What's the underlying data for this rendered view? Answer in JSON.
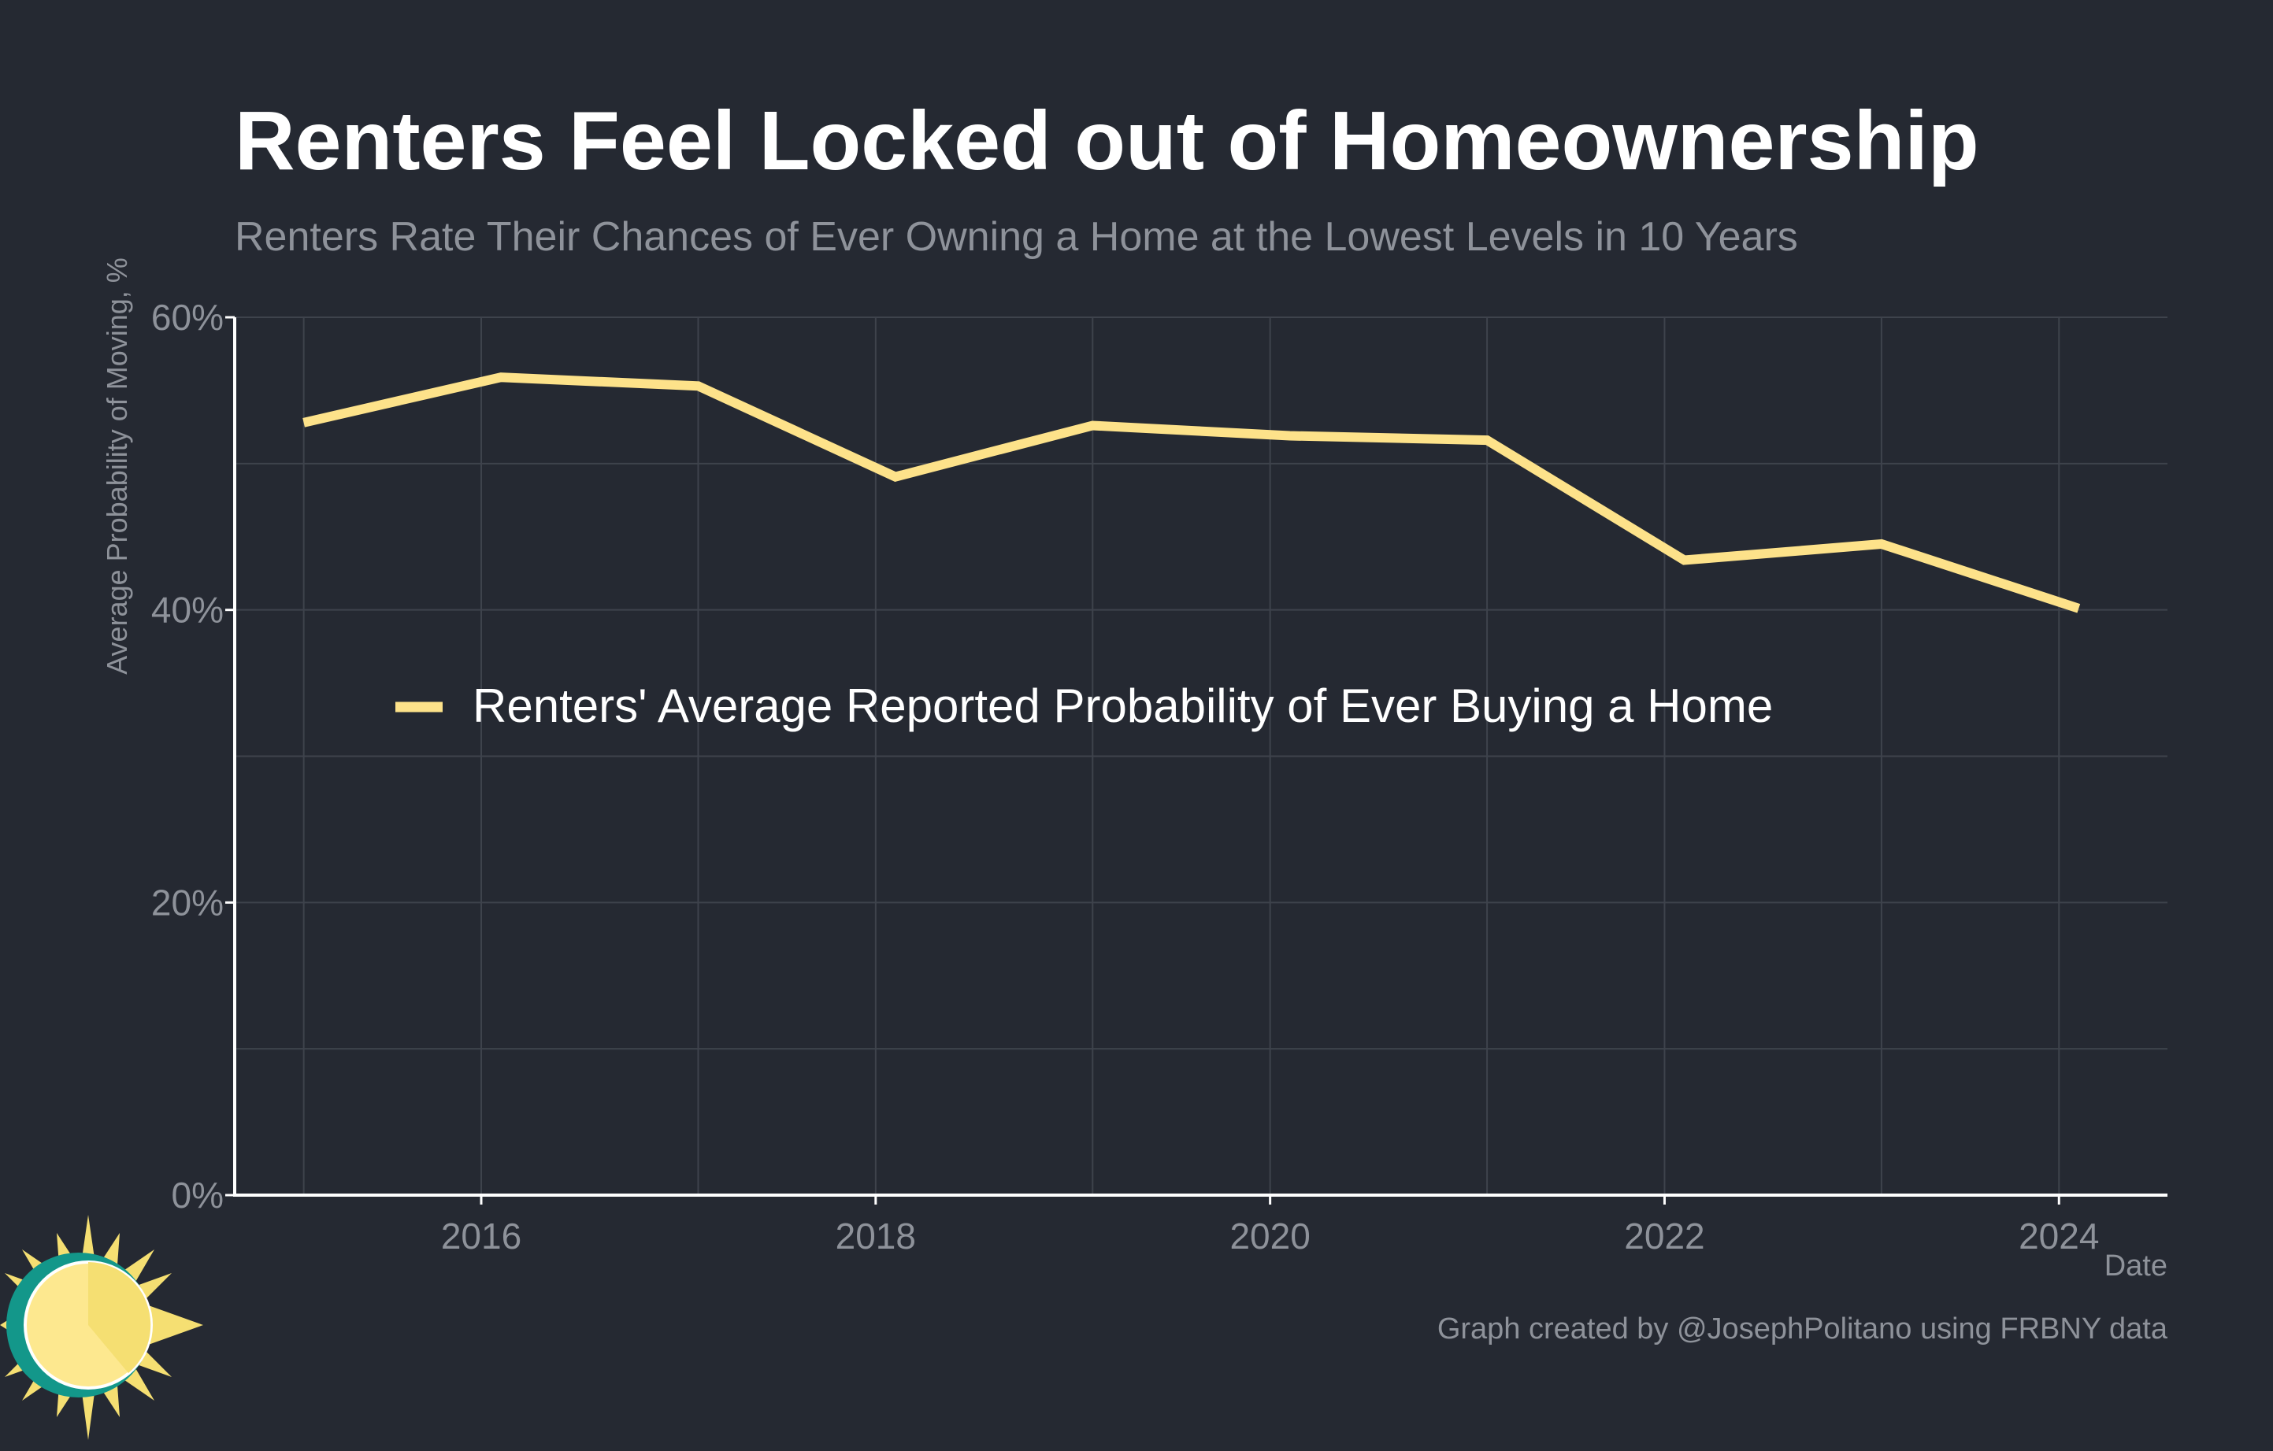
{
  "chart_data": {
    "type": "line",
    "title": "Renters Feel Locked out of Homeownership",
    "subtitle": "Renters Rate Their Chances of Ever Owning a Home at the Lowest Levels in 10 Years",
    "xlabel": "Date",
    "ylabel": "Average Probability of Moving, %",
    "ylim": [
      0,
      60
    ],
    "xlim": [
      2014.75,
      2024.55
    ],
    "yticks": [
      0,
      20,
      40,
      60
    ],
    "ytick_labels": [
      "0%",
      "20%",
      "40%",
      "60%"
    ],
    "yminor": [
      10,
      30,
      50
    ],
    "xticks": [
      2016,
      2018,
      2020,
      2022,
      2024
    ],
    "xtick_labels": [
      "2016",
      "2018",
      "2020",
      "2022",
      "2024"
    ],
    "xminor": [
      2015.1,
      2017.1,
      2019.1,
      2021.1,
      2023.1
    ],
    "grid": true,
    "legend_position": "center-left",
    "series": [
      {
        "name": "Renters' Average Reported Probability of Ever Buying a Home",
        "color": "#FDE28A",
        "x": [
          2015.1,
          2016.1,
          2017.1,
          2018.1,
          2019.1,
          2020.1,
          2021.1,
          2022.1,
          2023.1,
          2024.1
        ],
        "values": [
          52.8,
          55.9,
          55.3,
          49.1,
          52.6,
          51.9,
          51.6,
          43.4,
          44.5,
          40.1
        ]
      }
    ],
    "credit": "Graph created by @JosephPolitano using FRBNY data"
  },
  "colors": {
    "background": "#252932",
    "title": "#FFFFFF",
    "muted": "#8E929A",
    "grid": "#3E434C",
    "axis": "#FFFFFF",
    "logo_sun": "#F5DF72",
    "logo_sun_light": "#FDE88F",
    "logo_ring": "#13978A"
  }
}
